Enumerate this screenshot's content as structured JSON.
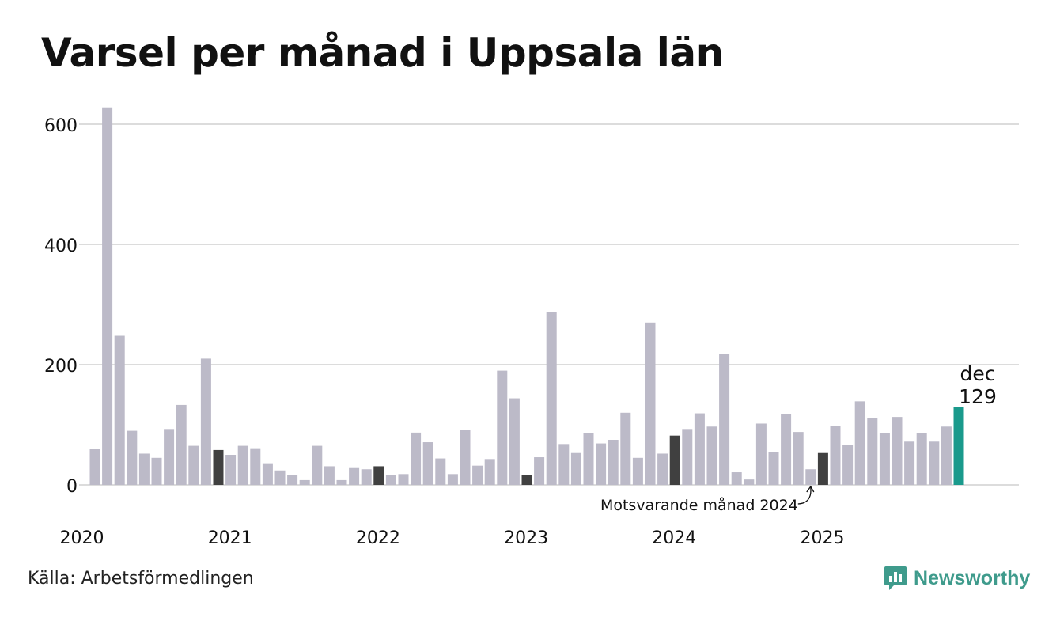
{
  "title": "Varsel per månad i Uppsala län",
  "source": "Källa: Arbetsförmedlingen",
  "brand": "Newsworthy",
  "colors": {
    "default_bar": "#bcbac8",
    "december_bar": "#404040",
    "highlight_bar": "#1a9a8c",
    "gridline": "#dcdcdc",
    "brand": "#3f9b8c"
  },
  "chart_data": {
    "type": "bar",
    "title": "Varsel per månad i Uppsala län",
    "xlabel": "",
    "ylabel": "",
    "ylim": [
      0,
      630
    ],
    "yticks": [
      0,
      200,
      400,
      600
    ],
    "year_labels": [
      "2020",
      "2021",
      "2022",
      "2023",
      "2024",
      "2025"
    ],
    "start": "2020-01",
    "values": [
      60,
      628,
      248,
      90,
      52,
      45,
      93,
      133,
      65,
      210,
      58,
      50,
      65,
      61,
      36,
      24,
      17,
      8,
      65,
      31,
      8,
      28,
      26,
      31,
      17,
      18,
      87,
      71,
      44,
      18,
      91,
      32,
      43,
      190,
      144,
      17,
      46,
      288,
      68,
      53,
      86,
      69,
      75,
      120,
      45,
      270,
      52,
      82,
      93,
      119,
      97,
      218,
      21,
      9,
      102,
      55,
      118,
      88,
      26,
      53,
      98,
      67,
      139,
      111,
      86,
      113,
      72,
      86,
      72,
      97,
      129
    ],
    "dark_bars": [
      "2020-11",
      "2021-12",
      "2022-12",
      "2023-12",
      "2024-12"
    ],
    "highlight": {
      "label": "dec",
      "value": "129"
    },
    "annotation": "Motsvarande månad 2024"
  }
}
